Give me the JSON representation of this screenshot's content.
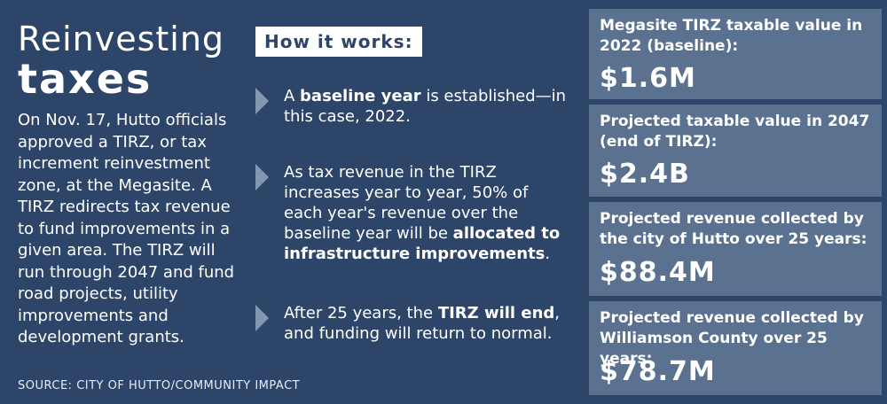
{
  "title": {
    "line1": "Reinvesting",
    "line2": "taxes"
  },
  "intro": "On Nov. 17, Hutto officials approved a TIRZ, or tax increment reinvestment zone, at the Megasite. A TIRZ redirects tax revenue to fund improvements in a given area. The TIRZ will run through 2047 and fund road projects, utility improvements and development grants.",
  "source": "SOURCE: CITY OF HUTTO/COMMUNITY IMPACT",
  "how_it_works": {
    "heading": "How it works:",
    "steps": [
      {
        "pre": "A ",
        "bold": "baseline year",
        "post": " is established—in this case, 2022."
      },
      {
        "pre": "As tax revenue in the TIRZ increases year to year, 50% of each year's revenue over the baseline year will be ",
        "bold": "allocated to infrastructure improvements",
        "post": "."
      },
      {
        "pre": "After 25 years, the ",
        "bold": "TIRZ will end",
        "post": ", and funding will return to normal."
      }
    ]
  },
  "stats": [
    {
      "label": "Megasite TIRZ taxable value in 2022 (baseline):",
      "value": "$1.6M"
    },
    {
      "label": "Projected taxable value in 2047 (end of TIRZ):",
      "value": "$2.4B"
    },
    {
      "label": "Projected revenue collected by the city of Hutto over 25 years:",
      "value": "$88.4M"
    },
    {
      "label": "Projected revenue collected by Williamson County over 25 years:",
      "value": "$78.7M"
    }
  ],
  "colors": {
    "background": "#2d4569",
    "panel": "#5a718f",
    "arrow": "#8497b1"
  }
}
